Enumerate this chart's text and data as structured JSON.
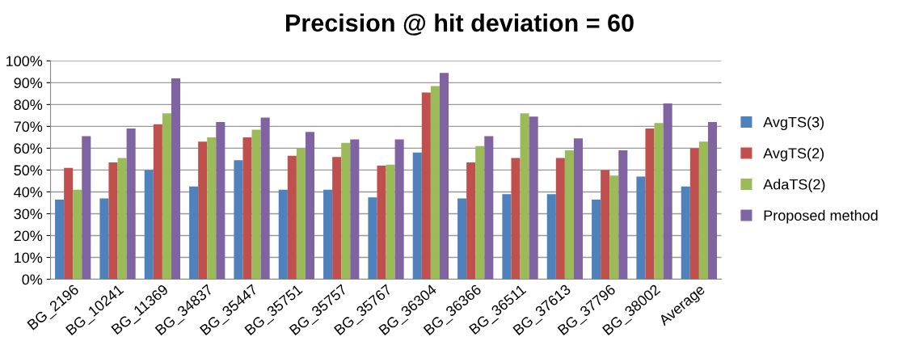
{
  "chart_data": {
    "type": "bar",
    "title": "Precision @ hit deviation = 60",
    "categories": [
      "BG_2196",
      "BG_10241",
      "BG_11369",
      "BG_34837",
      "BG_35447",
      "BG_35751",
      "BG_35757",
      "BG_35767",
      "BG_36304",
      "BG_36366",
      "BG_36511",
      "BG_37613",
      "BG_37796",
      "BG_38002",
      "Average"
    ],
    "series": [
      {
        "name": "AvgTS(3)",
        "color": "#4f81bd",
        "values": [
          36.5,
          37,
          50,
          42.5,
          54.5,
          41,
          41,
          37.5,
          58,
          37,
          39,
          39,
          36.5,
          47,
          42.5
        ]
      },
      {
        "name": "AvgTS(2)",
        "color": "#c0504d",
        "values": [
          51,
          53.5,
          71,
          63,
          65,
          56.5,
          56,
          52,
          85.5,
          53.5,
          55.5,
          55.5,
          50,
          69,
          60
        ]
      },
      {
        "name": "AdaTS(2)",
        "color": "#9bbb59",
        "values": [
          41,
          55.5,
          76,
          65,
          68.5,
          60,
          62.5,
          52.5,
          88.5,
          61,
          76,
          59,
          47.5,
          71.5,
          63
        ]
      },
      {
        "name": "Proposed method",
        "color": "#8064a2",
        "values": [
          65.5,
          69,
          92,
          72,
          74,
          67.5,
          64,
          64,
          94.5,
          65.5,
          74.5,
          64.5,
          59,
          80.5,
          72
        ]
      }
    ],
    "ylim": [
      0,
      100
    ],
    "yticks": [
      {
        "value": 0,
        "label": "0%"
      },
      {
        "value": 10,
        "label": "10%"
      },
      {
        "value": 20,
        "label": "20%"
      },
      {
        "value": 30,
        "label": "30%"
      },
      {
        "value": 40,
        "label": "40%"
      },
      {
        "value": 50,
        "label": "50%"
      },
      {
        "value": 60,
        "label": "60%"
      },
      {
        "value": 70,
        "label": "70%"
      },
      {
        "value": 80,
        "label": "80%"
      },
      {
        "value": 90,
        "label": "90%"
      },
      {
        "value": 100,
        "label": "100%"
      }
    ],
    "grid": "y",
    "legend": "right"
  }
}
